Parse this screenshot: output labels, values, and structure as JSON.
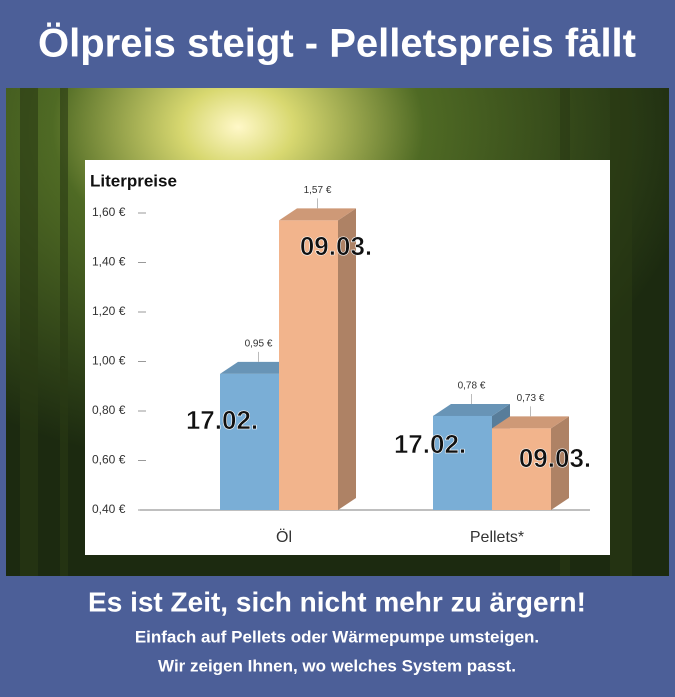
{
  "chart_data": {
    "type": "bar3d",
    "title": "Ölpreis steigt - Pelletspreis fällt",
    "y_label": "Literpreise",
    "categories": [
      "Öl",
      "Pellets*"
    ],
    "series": [
      {
        "name": "17.02.",
        "color": "#7aaed6",
        "values": [
          0.95,
          0.78
        ],
        "value_labels": [
          "0,95 €",
          "0,78 €"
        ]
      },
      {
        "name": "09.03.",
        "color": "#f2b48c",
        "values": [
          1.57,
          0.73
        ],
        "value_labels": [
          "1,57 €",
          "0,73 €"
        ]
      }
    ],
    "ylim": [
      0.4,
      1.6
    ],
    "yticks": [
      {
        "value": 0.4,
        "label": "0,40 €"
      },
      {
        "value": 0.6,
        "label": "0,60 €"
      },
      {
        "value": 0.8,
        "label": "0,80 €"
      },
      {
        "value": 1.0,
        "label": "1,00 €"
      },
      {
        "value": 1.2,
        "label": "1,20 €"
      },
      {
        "value": 1.4,
        "label": "1,40 €"
      },
      {
        "value": 1.6,
        "label": "1,60 €"
      }
    ]
  },
  "footer": {
    "headline": "Es ist Zeit, sich nicht mehr zu ärgern!",
    "lines": [
      "Einfach auf Pellets oder Wärmepumpe umsteigen.",
      "Wir zeigen Ihnen, wo welches System passt."
    ]
  }
}
